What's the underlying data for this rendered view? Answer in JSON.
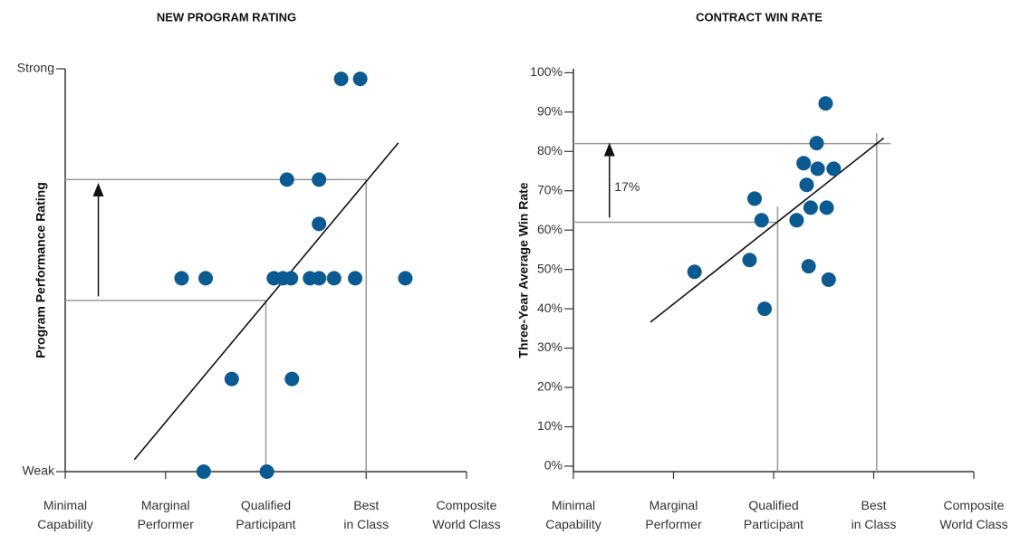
{
  "chart_data": [
    {
      "type": "scatter",
      "title": "NEW PROGRAM RATING",
      "y_label": "Program Performance Rating",
      "color": "#0b5a91",
      "xlim": [
        0,
        4
      ],
      "ylim": [
        0,
        10
      ],
      "xticks": [
        {
          "value": 0,
          "label": [
            "Minimal",
            "Capability"
          ]
        },
        {
          "value": 1,
          "label": [
            "Marginal",
            "Performer"
          ]
        },
        {
          "value": 2,
          "label": [
            "Qualified",
            "Participant"
          ]
        },
        {
          "value": 3,
          "label": [
            "Best",
            "in Class"
          ]
        },
        {
          "value": 4,
          "label": [
            "Composite",
            "World Class"
          ]
        }
      ],
      "yticks": [
        {
          "value": 0,
          "label": "Weak"
        },
        {
          "value": 10,
          "label": "Strong"
        }
      ],
      "x": [
        2.75,
        2.94,
        2.21,
        2.53,
        2.53,
        1.16,
        1.4,
        2.08,
        2.17,
        2.25,
        2.44,
        2.53,
        2.68,
        2.89,
        3.39,
        1.66,
        2.26,
        1.38,
        2.01
      ],
      "values": [
        9.75,
        9.75,
        7.25,
        7.25,
        6.15,
        4.8,
        4.8,
        4.8,
        4.8,
        4.8,
        4.8,
        4.8,
        4.8,
        4.8,
        4.8,
        2.3,
        2.3,
        0,
        0
      ],
      "trend_line": {
        "x": [
          0.69,
          3.32
        ],
        "y": [
          0.3,
          8.16
        ]
      },
      "reference_lines": [
        {
          "x": [
            0,
            3
          ],
          "y": [
            7.25,
            7.25
          ]
        },
        {
          "x": [
            0,
            2
          ],
          "y": [
            4.25,
            4.25
          ]
        },
        {
          "x": [
            2,
            2
          ],
          "y": [
            4.25,
            0
          ]
        },
        {
          "x": [
            3,
            3
          ],
          "y": [
            7.25,
            0
          ]
        }
      ],
      "arrow": {
        "x": [
          0.33,
          0.33
        ],
        "y": [
          4.35,
          7.0
        ]
      }
    },
    {
      "type": "scatter",
      "title": "CONTRACT WIN RATE",
      "y_label": "Three-Year Average Win Rate",
      "color": "#0b5a91",
      "xlim": [
        0,
        4
      ],
      "ylim": [
        -1.4,
        101
      ],
      "xticks": [
        {
          "value": 0,
          "label": [
            "Minimal",
            "Capability"
          ]
        },
        {
          "value": 1,
          "label": [
            "Marginal",
            "Performer"
          ]
        },
        {
          "value": 2,
          "label": [
            "Qualified",
            "Participant"
          ]
        },
        {
          "value": 3,
          "label": [
            "Best",
            "in Class"
          ]
        },
        {
          "value": 4,
          "label": [
            "Composite",
            "World Class"
          ]
        }
      ],
      "yticks": [
        {
          "value": 0,
          "label": "0%"
        },
        {
          "value": 10,
          "label": "10%"
        },
        {
          "value": 20,
          "label": "20%"
        },
        {
          "value": 30,
          "label": "30%"
        },
        {
          "value": 40,
          "label": "40%"
        },
        {
          "value": 50,
          "label": "50%"
        },
        {
          "value": 60,
          "label": "60%"
        },
        {
          "value": 70,
          "label": "70%"
        },
        {
          "value": 80,
          "label": "80%"
        },
        {
          "value": 90,
          "label": "90%"
        },
        {
          "value": 100,
          "label": "100%"
        }
      ],
      "x": [
        1.21,
        1.81,
        1.88,
        1.76,
        1.91,
        2.23,
        2.3,
        2.33,
        2.37,
        2.43,
        2.44,
        2.52,
        2.53,
        2.6,
        2.35,
        2.55
      ],
      "values": [
        49.4,
        68.0,
        62.5,
        52.4,
        40.0,
        62.5,
        77.0,
        71.5,
        65.7,
        82.1,
        75.6,
        92.2,
        65.7,
        75.6,
        50.8,
        47.4
      ],
      "trend_line": {
        "x": [
          0.77,
          3.1
        ],
        "y": [
          36.6,
          83.4
        ]
      },
      "reference_lines": [
        {
          "x": [
            0,
            3.17
          ],
          "y": [
            82,
            82
          ]
        },
        {
          "x": [
            0,
            2.04
          ],
          "y": [
            62,
            62
          ]
        },
        {
          "x": [
            2.04,
            2.04
          ],
          "y": [
            66,
            -1.4
          ]
        },
        {
          "x": [
            3.03,
            3.03
          ],
          "y": [
            84.6,
            -1.4
          ]
        }
      ],
      "arrow": {
        "x": [
          0.36,
          0.36
        ],
        "y": [
          63.2,
          80.5
        ]
      },
      "annotation": {
        "text": "17%",
        "x": 0.41,
        "y": 70.8
      }
    }
  ]
}
